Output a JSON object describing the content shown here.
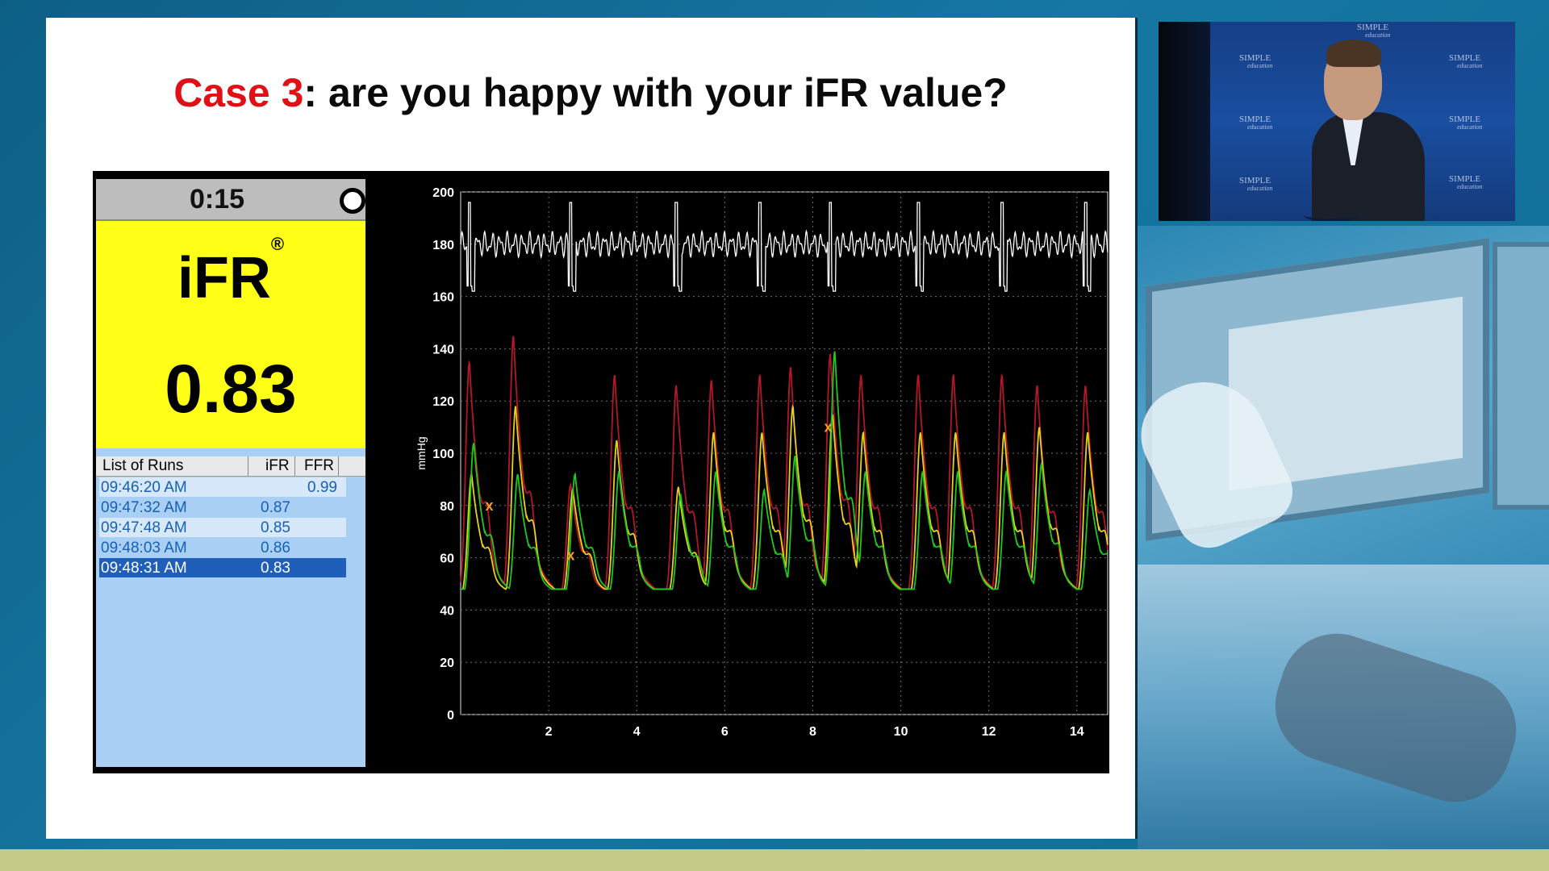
{
  "slide": {
    "title_case": "Case 3",
    "title_rest": ": are you happy with your iFR value?"
  },
  "monitor": {
    "timer": "0:15",
    "ifr_label": "iFR",
    "ifr_registered": "®",
    "ifr_value": "0.83",
    "runs_header": {
      "list": "List of Runs",
      "ifr": "iFR",
      "ffr": "FFR"
    },
    "runs": [
      {
        "time": "09:46:20 AM",
        "ifr": "",
        "ffr": "0.99"
      },
      {
        "time": "09:47:32 AM",
        "ifr": "0.87",
        "ffr": ""
      },
      {
        "time": "09:47:48 AM",
        "ifr": "0.85",
        "ffr": ""
      },
      {
        "time": "09:48:03 AM",
        "ifr": "0.86",
        "ffr": ""
      },
      {
        "time": "09:48:31 AM",
        "ifr": "0.83",
        "ffr": ""
      }
    ],
    "selected_run_index": 4
  },
  "chart_data": {
    "type": "line",
    "title": "",
    "xlabel": "",
    "ylabel": "mmHg",
    "xlim": [
      0,
      14.7
    ],
    "ylim": [
      0,
      200
    ],
    "x_ticks": [
      2,
      4,
      6,
      8,
      10,
      12,
      14
    ],
    "y_ticks": [
      0,
      20,
      40,
      60,
      80,
      100,
      120,
      140,
      160,
      180,
      200
    ],
    "grid": true,
    "beat_times": [
      0.2,
      1.2,
      2.5,
      3.5,
      4.9,
      5.7,
      6.8,
      7.5,
      8.4,
      9.1,
      10.4,
      11.2,
      12.3,
      13.1,
      14.2
    ],
    "series": [
      {
        "name": "",
        "color": "#b4162a",
        "peak_values": [
          135,
          145,
          88,
          130,
          126,
          128,
          130,
          133,
          138,
          130,
          130,
          130,
          130,
          126,
          126
        ]
      },
      {
        "name": "",
        "color": "#e7d21a",
        "peak_values": [
          92,
          118,
          86,
          105,
          87,
          108,
          108,
          118,
          115,
          108,
          108,
          108,
          108,
          110,
          108
        ]
      },
      {
        "name": "",
        "color": "#1ec81e",
        "peak_values": [
          104,
          92,
          92,
          93,
          84,
          93,
          86,
          99,
          139,
          93,
          93,
          93,
          93,
          96,
          86
        ]
      }
    ],
    "markers_x": [
      {
        "x": 0.65,
        "y": 80
      },
      {
        "x": 2.5,
        "y": 61
      },
      {
        "x": 8.35,
        "y": 110
      }
    ],
    "ecg_band": [
      160,
      200
    ]
  },
  "video": {
    "watermark_main": "SIMPLE",
    "watermark_sub": "education"
  },
  "colors": {
    "title_accent": "#e10f16",
    "ifr_box": "#ffff17",
    "selected_row": "#1f5fb9",
    "bottom_bar": "#c5c98a"
  }
}
